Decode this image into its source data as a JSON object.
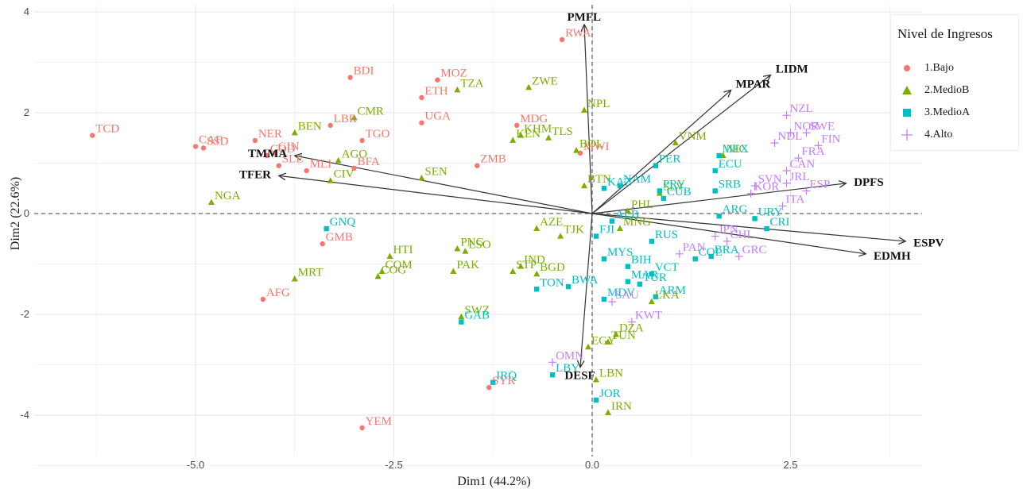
{
  "chart_data": {
    "type": "scatter",
    "subtype": "pca-biplot",
    "xlabel": "Dim1 (44.2%)",
    "ylabel": "Dim2 (22.6%)",
    "xlim": [
      -6.5,
      4.2
    ],
    "ylim": [
      -4.6,
      4.0
    ],
    "x_ticks": [
      -5.0,
      -2.5,
      0.0,
      2.5
    ],
    "x_tick_labels": [
      "-5.0",
      "-2.5",
      "0.0",
      "2.5"
    ],
    "y_ticks": [
      -4,
      -2,
      0,
      2,
      4
    ],
    "y_tick_labels": [
      "-4",
      "-2",
      "0",
      "2",
      "4"
    ],
    "grid": true,
    "legend_position": "right",
    "legend": {
      "title": "Nivel de Ingresos",
      "entries": [
        {
          "label": "1.Bajo",
          "color": "#F8766D",
          "shape": "circle"
        },
        {
          "label": "2.MedioB",
          "color": "#7CAE00",
          "shape": "triangle"
        },
        {
          "label": "3.MedioA",
          "color": "#00BFC4",
          "shape": "square"
        },
        {
          "label": "4.Alto",
          "color": "#C77CFF",
          "shape": "plus"
        }
      ]
    },
    "series": [
      {
        "name": "1.Bajo",
        "points": [
          {
            "label": "TCD",
            "x": -6.3,
            "y": 1.55
          },
          {
            "label": "CAF",
            "x": -5.0,
            "y": 1.33
          },
          {
            "label": "SSD",
            "x": -4.9,
            "y": 1.3
          },
          {
            "label": "NER",
            "x": -4.25,
            "y": 1.45
          },
          {
            "label": "GIN",
            "x": -4.0,
            "y": 1.2
          },
          {
            "label": "COD",
            "x": -4.1,
            "y": 1.15
          },
          {
            "label": "SLE",
            "x": -3.95,
            "y": 0.95
          },
          {
            "label": "MLI",
            "x": -3.6,
            "y": 0.85
          },
          {
            "label": "BFA",
            "x": -3.0,
            "y": 0.9
          },
          {
            "label": "LBR",
            "x": -3.3,
            "y": 1.75
          },
          {
            "label": "TGO",
            "x": -2.9,
            "y": 1.45
          },
          {
            "label": "BDI",
            "x": -3.05,
            "y": 2.7
          },
          {
            "label": "MOZ",
            "x": -1.95,
            "y": 2.65
          },
          {
            "label": "ETH",
            "x": -2.15,
            "y": 2.3
          },
          {
            "label": "UGA",
            "x": -2.15,
            "y": 1.8
          },
          {
            "label": "RWA",
            "x": -0.38,
            "y": 3.45
          },
          {
            "label": "MDG",
            "x": -0.95,
            "y": 1.75
          },
          {
            "label": "ZMB",
            "x": -1.45,
            "y": 0.95
          },
          {
            "label": "MWI",
            "x": -0.15,
            "y": 1.2
          },
          {
            "label": "GMB",
            "x": -3.4,
            "y": -0.6
          },
          {
            "label": "AFG",
            "x": -4.15,
            "y": -1.7
          },
          {
            "label": "SYR",
            "x": -1.3,
            "y": -3.45
          },
          {
            "label": "YEM",
            "x": -2.9,
            "y": -4.25
          }
        ]
      },
      {
        "name": "2.MedioB",
        "points": [
          {
            "label": "BEN",
            "x": -3.75,
            "y": 1.6
          },
          {
            "label": "AGO",
            "x": -3.2,
            "y": 1.05
          },
          {
            "label": "CMR",
            "x": -3.0,
            "y": 1.9
          },
          {
            "label": "CIV",
            "x": -3.3,
            "y": 0.65
          },
          {
            "label": "NGA",
            "x": -4.8,
            "y": 0.22
          },
          {
            "label": "SEN",
            "x": -2.15,
            "y": 0.7
          },
          {
            "label": "TZA",
            "x": -1.7,
            "y": 2.45
          },
          {
            "label": "ZWE",
            "x": -0.8,
            "y": 2.5
          },
          {
            "label": "KHM",
            "x": -0.9,
            "y": 1.55
          },
          {
            "label": "KEN",
            "x": -1.0,
            "y": 1.45
          },
          {
            "label": "TLS",
            "x": -0.55,
            "y": 1.5
          },
          {
            "label": "BOL",
            "x": -0.2,
            "y": 1.25
          },
          {
            "label": "NPL",
            "x": -0.1,
            "y": 2.05
          },
          {
            "label": "BTN",
            "x": -0.1,
            "y": 0.55
          },
          {
            "label": "PNG",
            "x": -1.7,
            "y": -0.7
          },
          {
            "label": "LSO",
            "x": -1.6,
            "y": -0.75
          },
          {
            "label": "HTI",
            "x": -2.55,
            "y": -0.85
          },
          {
            "label": "COM",
            "x": -2.65,
            "y": -1.15
          },
          {
            "label": "COG",
            "x": -2.7,
            "y": -1.25
          },
          {
            "label": "PAK",
            "x": -1.75,
            "y": -1.15
          },
          {
            "label": "MRT",
            "x": -3.75,
            "y": -1.3
          },
          {
            "label": "AZE",
            "x": -0.7,
            "y": -0.3
          },
          {
            "label": "TJK",
            "x": -0.4,
            "y": -0.45
          },
          {
            "label": "IND",
            "x": -0.9,
            "y": -1.05
          },
          {
            "label": "STP",
            "x": -1.0,
            "y": -1.15
          },
          {
            "label": "BGD",
            "x": -0.7,
            "y": -1.2
          },
          {
            "label": "SWZ",
            "x": -1.65,
            "y": -2.05
          },
          {
            "label": "DZA",
            "x": 0.3,
            "y": -2.4
          },
          {
            "label": "EGY",
            "x": -0.05,
            "y": -2.65
          },
          {
            "label": "TUN",
            "x": 0.2,
            "y": -2.55
          },
          {
            "label": "LBN",
            "x": 0.05,
            "y": -3.3
          },
          {
            "label": "IRN",
            "x": 0.2,
            "y": -3.95
          },
          {
            "label": "LKA",
            "x": 0.75,
            "y": -1.75
          },
          {
            "label": "PHL",
            "x": 0.45,
            "y": 0.05
          },
          {
            "label": "MNG",
            "x": 0.35,
            "y": -0.3
          },
          {
            "label": "VNM",
            "x": 1.05,
            "y": 1.4
          },
          {
            "label": "NIC",
            "x": 1.65,
            "y": 1.15
          },
          {
            "label": "SLV",
            "x": 0.85,
            "y": 0.4
          }
        ]
      },
      {
        "name": "3.MedioA",
        "points": [
          {
            "label": "GNQ",
            "x": -3.35,
            "y": -0.3
          },
          {
            "label": "GAB",
            "x": -1.65,
            "y": -2.15
          },
          {
            "label": "IRQ",
            "x": -1.25,
            "y": -3.35
          },
          {
            "label": "TON",
            "x": -0.7,
            "y": -1.5
          },
          {
            "label": "BWA",
            "x": -0.3,
            "y": -1.45
          },
          {
            "label": "LBY",
            "x": -0.5,
            "y": -3.2
          },
          {
            "label": "JOR",
            "x": 0.05,
            "y": -3.7
          },
          {
            "label": "MDV",
            "x": 0.15,
            "y": -1.7
          },
          {
            "label": "MYS",
            "x": 0.15,
            "y": -0.9
          },
          {
            "label": "FJI",
            "x": 0.05,
            "y": -0.45
          },
          {
            "label": "ALB",
            "x": 0.25,
            "y": -0.15
          },
          {
            "label": "MAR",
            "x": 0.45,
            "y": -1.35
          },
          {
            "label": "BIH",
            "x": 0.45,
            "y": -1.05
          },
          {
            "label": "TUR",
            "x": 0.6,
            "y": -1.4
          },
          {
            "label": "ARM",
            "x": 0.8,
            "y": -1.65
          },
          {
            "label": "VCT",
            "x": 0.75,
            "y": -1.2
          },
          {
            "label": "RUS",
            "x": 0.75,
            "y": -0.55
          },
          {
            "label": "PER",
            "x": 0.8,
            "y": 0.95
          },
          {
            "label": "PRY",
            "x": 0.85,
            "y": 0.45
          },
          {
            "label": "NAM",
            "x": 0.35,
            "y": 0.55
          },
          {
            "label": "KAZ",
            "x": 0.15,
            "y": 0.5
          },
          {
            "label": "ECU",
            "x": 1.55,
            "y": 0.85
          },
          {
            "label": "MEX",
            "x": 1.6,
            "y": 1.15
          },
          {
            "label": "SRB",
            "x": 1.55,
            "y": 0.45
          },
          {
            "label": "ARG",
            "x": 1.6,
            "y": -0.05
          },
          {
            "label": "COL",
            "x": 1.3,
            "y": -0.9
          },
          {
            "label": "BRA",
            "x": 1.5,
            "y": -0.85
          },
          {
            "label": "URY",
            "x": 2.05,
            "y": -0.1
          },
          {
            "label": "CRI",
            "x": 2.2,
            "y": -0.3
          },
          {
            "label": "CUB",
            "x": 0.9,
            "y": 0.3
          }
        ]
      },
      {
        "name": "4.Alto",
        "points": [
          {
            "label": "NZL",
            "x": 2.45,
            "y": 1.95
          },
          {
            "label": "NOR",
            "x": 2.5,
            "y": 1.6
          },
          {
            "label": "SWE",
            "x": 2.7,
            "y": 1.6
          },
          {
            "label": "FIN",
            "x": 2.85,
            "y": 1.35
          },
          {
            "label": "NDL",
            "x": 2.3,
            "y": 1.4
          },
          {
            "label": "FRA",
            "x": 2.6,
            "y": 1.1
          },
          {
            "label": "CAN",
            "x": 2.45,
            "y": 0.85
          },
          {
            "label": "JRL",
            "x": 2.45,
            "y": 0.6
          },
          {
            "label": "KOR",
            "x": 2.0,
            "y": 0.4
          },
          {
            "label": "ESP",
            "x": 2.7,
            "y": 0.45
          },
          {
            "label": "ITA",
            "x": 2.4,
            "y": 0.15
          },
          {
            "label": "SVN",
            "x": 2.05,
            "y": 0.55
          },
          {
            "label": "JPN",
            "x": 1.55,
            "y": -0.45
          },
          {
            "label": "CHL",
            "x": 1.7,
            "y": -0.55
          },
          {
            "label": "GRC",
            "x": 1.85,
            "y": -0.85
          },
          {
            "label": "PAN",
            "x": 1.1,
            "y": -0.8
          },
          {
            "label": "SAU",
            "x": 0.25,
            "y": -1.75
          },
          {
            "label": "KWT",
            "x": 0.5,
            "y": -2.15
          },
          {
            "label": "OMN",
            "x": -0.5,
            "y": -2.95
          }
        ]
      }
    ],
    "variables": [
      {
        "label": "PMFL",
        "x": -0.1,
        "y": 3.75
      },
      {
        "label": "LIDM",
        "x": 2.25,
        "y": 2.75
      },
      {
        "label": "MPAR",
        "x": 1.75,
        "y": 2.45
      },
      {
        "label": "DPFS",
        "x": 3.2,
        "y": 0.6
      },
      {
        "label": "ESPV",
        "x": 3.95,
        "y": -0.55
      },
      {
        "label": "EDMH",
        "x": 3.45,
        "y": -0.8
      },
      {
        "label": "DESF",
        "x": -0.15,
        "y": -3.05
      },
      {
        "label": "TMMA",
        "x": -3.75,
        "y": 1.15
      },
      {
        "label": "TFER",
        "x": -3.95,
        "y": 0.75
      }
    ]
  }
}
